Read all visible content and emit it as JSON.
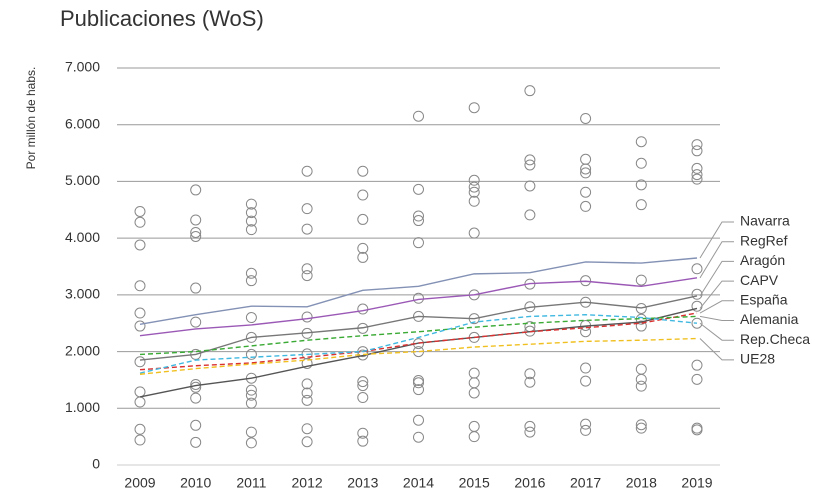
{
  "chart_data": {
    "type": "line",
    "title": "Publicaciones (WoS)",
    "y_label": "Por millón de habs.",
    "categories": [
      "2009",
      "2010",
      "2011",
      "2012",
      "2013",
      "2014",
      "2015",
      "2016",
      "2017",
      "2018",
      "2019"
    ],
    "ylim": [
      0,
      7000
    ],
    "yticks": [
      0,
      {
        "value": 1000,
        "label": "1.000"
      },
      {
        "value": 2000,
        "label": "2.000"
      },
      {
        "value": 3000,
        "label": "3.000"
      },
      {
        "value": 4000,
        "label": "4.000"
      },
      {
        "value": 5000,
        "label": "5.000"
      },
      {
        "value": 6000,
        "label": "6.000"
      },
      {
        "value": 7000,
        "label": "7.000"
      }
    ],
    "grid": true,
    "series": [
      {
        "name": "Navarra",
        "color": "#8391b5",
        "dashed": false,
        "values": [
          2480,
          2650,
          2800,
          2790,
          3080,
          3150,
          3370,
          3390,
          3580,
          3560,
          3650
        ]
      },
      {
        "name": "RegRef",
        "color": "#9b59b6",
        "dashed": false,
        "values": [
          2280,
          2400,
          2470,
          2580,
          2720,
          2920,
          3000,
          3200,
          3240,
          3150,
          3300
        ]
      },
      {
        "name": "Aragón",
        "color": "#777777",
        "dashed": false,
        "values": [
          1850,
          1950,
          2250,
          2330,
          2420,
          2620,
          2580,
          2780,
          2870,
          2770,
          2980
        ]
      },
      {
        "name": "CAPV",
        "color": "#555555",
        "dashed": false,
        "values": [
          1200,
          1400,
          1530,
          1740,
          1930,
          2150,
          2250,
          2350,
          2450,
          2520,
          2760
        ]
      },
      {
        "name": "España",
        "color": "#d93030",
        "dashed": true,
        "values": [
          1680,
          1750,
          1800,
          1900,
          2000,
          2150,
          2250,
          2350,
          2420,
          2500,
          2680
        ]
      },
      {
        "name": "Alemania",
        "color": "#3aaa35",
        "dashed": true,
        "values": [
          1950,
          2000,
          2100,
          2200,
          2280,
          2350,
          2430,
          2500,
          2550,
          2580,
          2620
        ]
      },
      {
        "name": "Rep.Checa",
        "color": "#40b8e0",
        "dashed": true,
        "values": [
          1620,
          1850,
          1900,
          1950,
          2000,
          2250,
          2520,
          2620,
          2650,
          2600,
          2500
        ]
      },
      {
        "name": "UE28",
        "color": "#f0c020",
        "dashed": true,
        "values": [
          1600,
          1700,
          1780,
          1850,
          1950,
          2000,
          2080,
          2130,
          2180,
          2200,
          2230
        ]
      }
    ],
    "points": [
      [
        4470,
        4280,
        3880,
        3160,
        2680,
        2450,
        1820,
        1290,
        1110,
        630,
        440
      ],
      [
        4850,
        4320,
        4100,
        4030,
        3120,
        2520,
        1950,
        1420,
        1370,
        1180,
        700,
        400
      ],
      [
        4600,
        4450,
        4300,
        4150,
        3380,
        3250,
        2600,
        2250,
        1950,
        1530,
        1320,
        1230,
        1090,
        580,
        390
      ],
      [
        5180,
        4520,
        4160,
        3460,
        3340,
        2610,
        2320,
        1960,
        1790,
        1430,
        1270,
        1140,
        640,
        410
      ],
      [
        5180,
        4760,
        4330,
        3820,
        3660,
        2750,
        2410,
        2000,
        1940,
        1470,
        1400,
        1190,
        560,
        420
      ],
      [
        6150,
        4860,
        4390,
        4310,
        3920,
        2940,
        2620,
        2140,
        2000,
        1490,
        1450,
        1330,
        790,
        490
      ],
      [
        6300,
        5020,
        4900,
        4810,
        4650,
        4090,
        3000,
        2580,
        2250,
        1620,
        1450,
        1270,
        680,
        500
      ],
      [
        6600,
        5380,
        5290,
        4920,
        4410,
        3190,
        2790,
        2440,
        2360,
        1610,
        1460,
        680,
        580
      ],
      [
        6110,
        5390,
        5220,
        5150,
        4810,
        4560,
        3250,
        2870,
        2460,
        2350,
        1710,
        1480,
        720,
        610
      ],
      [
        5700,
        5320,
        4940,
        4590,
        3260,
        2760,
        2570,
        2450,
        1690,
        1510,
        1390,
        710,
        650
      ],
      [
        5650,
        5540,
        5230,
        5120,
        5040,
        3460,
        3010,
        2800,
        2500,
        1760,
        1510,
        650,
        620
      ]
    ]
  }
}
